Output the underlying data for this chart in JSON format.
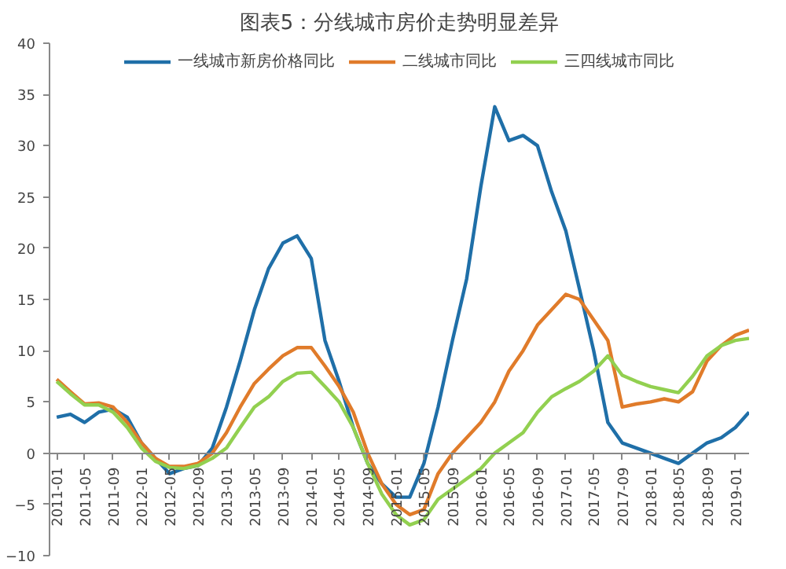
{
  "chart_data": {
    "type": "line",
    "title": "图表5：分线城市房价走势明显差异",
    "x": [
      "2011-01",
      "2011-03",
      "2011-05",
      "2011-07",
      "2011-09",
      "2011-11",
      "2012-01",
      "2012-03",
      "2012-05",
      "2012-07",
      "2012-09",
      "2012-11",
      "2013-01",
      "2013-03",
      "2013-05",
      "2013-07",
      "2013-09",
      "2013-11",
      "2014-01",
      "2014-03",
      "2014-05",
      "2014-07",
      "2014-09",
      "2014-11",
      "2015-01",
      "2015-03",
      "2015-05",
      "2015-07",
      "2015-09",
      "2015-11",
      "2016-01",
      "2016-03",
      "2016-05",
      "2016-07",
      "2016-09",
      "2016-11",
      "2017-01",
      "2017-03",
      "2017-05",
      "2017-07",
      "2017-09",
      "2017-11",
      "2018-01",
      "2018-03",
      "2018-05",
      "2018-07",
      "2018-09",
      "2018-11",
      "2019-01",
      "2019-03"
    ],
    "series": [
      {
        "name": "一线城市新房价格同比",
        "color": "#1f6fa8",
        "values": [
          3.5,
          3.8,
          3.0,
          4.0,
          4.3,
          3.5,
          1.0,
          -0.5,
          -2.0,
          -1.5,
          -1.2,
          0.5,
          4.5,
          9,
          14,
          18,
          20.5,
          21.2,
          19,
          11,
          7,
          2.5,
          -1,
          -3,
          -4.3,
          -4.3,
          -1,
          4.5,
          11,
          17,
          26,
          33.8,
          30.5,
          31,
          30,
          25.5,
          21.7,
          16,
          10,
          3,
          1,
          0.5,
          0,
          -0.5,
          -1,
          0,
          1,
          1.5,
          2.5,
          4
        ]
      },
      {
        "name": "二线城市同比",
        "color": "#e07b2a",
        "values": [
          7.2,
          6,
          4.8,
          4.9,
          4.5,
          3,
          1,
          -0.5,
          -1.3,
          -1.3,
          -1,
          0,
          2,
          4.5,
          6.8,
          8.2,
          9.5,
          10.3,
          10.3,
          8.5,
          6.5,
          4,
          0,
          -3,
          -5,
          -6,
          -5.5,
          -2,
          0,
          1.5,
          3,
          5,
          8,
          10,
          12.5,
          14,
          15.5,
          15,
          13,
          11,
          4.5,
          4.8,
          5,
          5.3,
          5,
          6,
          9,
          10.5,
          11.5,
          12
        ]
      },
      {
        "name": "三四线城市同比",
        "color": "#92d050",
        "values": [
          7,
          5.8,
          4.7,
          4.7,
          4,
          2.5,
          0.5,
          -0.8,
          -1.4,
          -1.5,
          -1.2,
          -0.5,
          0.5,
          2.5,
          4.5,
          5.5,
          7,
          7.8,
          7.9,
          6.5,
          5,
          2.5,
          -1,
          -4,
          -6,
          -7,
          -6.5,
          -4.5,
          -3.5,
          -2.5,
          -1.5,
          0,
          1,
          2,
          4,
          5.5,
          6.3,
          7,
          8,
          9.5,
          7.6,
          7,
          6.5,
          6.2,
          5.9,
          7.5,
          9.5,
          10.5,
          11,
          11.2
        ]
      }
    ],
    "xlim": [
      "2010-12",
      "2019-03"
    ],
    "xticks": [
      "2011-01",
      "2011-05",
      "2011-09",
      "2012-01",
      "2012-05",
      "2012-09",
      "2013-01",
      "2013-05",
      "2013-09",
      "2014-01",
      "2014-05",
      "2014-09",
      "2015-01",
      "2015-05",
      "2015-09",
      "2016-01",
      "2016-05",
      "2016-09",
      "2017-01",
      "2017-05",
      "2017-09",
      "2018-01",
      "2018-05",
      "2018-09",
      "2019-01"
    ],
    "ylim": [
      -10,
      40
    ],
    "yticks": [
      -10,
      -5,
      0,
      5,
      10,
      15,
      20,
      25,
      30,
      35,
      40
    ],
    "legend": "top",
    "grid": false
  }
}
